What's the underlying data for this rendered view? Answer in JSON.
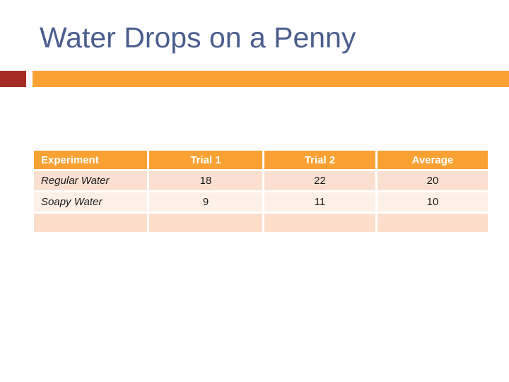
{
  "slide": {
    "title": "Water Drops on a Penny"
  },
  "colors": {
    "title_text": "#4A5E8E",
    "accent_red": "#A52C24",
    "accent_orange": "#F9A233",
    "table_header_bg": "#F9A233",
    "table_header_text": "#FFFFFF",
    "row_regular_bg": "#FBE0D1",
    "row_soapy_bg": "#FDF0E7",
    "row_empty_bg": "#FCDECB"
  },
  "table": {
    "headers": [
      "Experiment",
      "Trial 1",
      "Trial 2",
      "Average"
    ],
    "rows": [
      {
        "experiment": "Regular Water",
        "trial1": "18",
        "trial2": "22",
        "average": "20"
      },
      {
        "experiment": "Soapy Water",
        "trial1": "9",
        "trial2": "11",
        "average": "10"
      },
      {
        "experiment": "",
        "trial1": "",
        "trial2": "",
        "average": ""
      }
    ]
  }
}
